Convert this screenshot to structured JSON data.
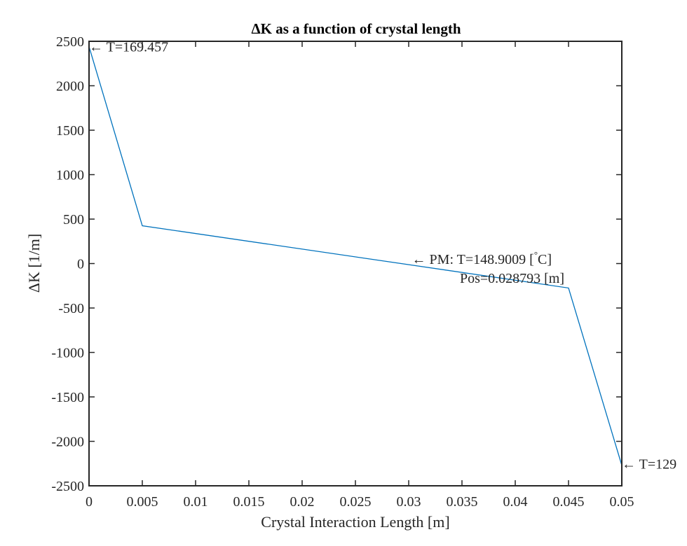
{
  "chart_data": {
    "type": "line",
    "title": "ΔK as a function of crystal length",
    "xlabel": "Crystal Interaction Length [m]",
    "ylabel": "ΔK [1/m]",
    "xlim": [
      0,
      0.05
    ],
    "ylim": [
      -2500,
      2500
    ],
    "xticks": [
      0,
      0.005,
      0.01,
      0.015,
      0.02,
      0.025,
      0.03,
      0.035,
      0.04,
      0.045,
      0.05
    ],
    "xtick_labels": [
      "0",
      "0.005",
      "0.01",
      "0.015",
      "0.02",
      "0.025",
      "0.03",
      "0.035",
      "0.04",
      "0.045",
      "0.05"
    ],
    "yticks": [
      2500,
      2000,
      1500,
      1000,
      500,
      0,
      -500,
      -1000,
      -1500,
      -2000,
      -2500
    ],
    "ytick_labels": [
      "2500",
      "2000",
      "1500",
      "1000",
      "500",
      "0",
      "-500",
      "-1000",
      "-1500",
      "-2000",
      "-2500"
    ],
    "grid": false,
    "color": "#0072bd",
    "series": [
      {
        "x": [
          0,
          0.005,
          0.045,
          0.05
        ],
        "y": [
          2440,
          425,
          -275,
          -2270
        ]
      }
    ],
    "annotations": [
      {
        "text": "← T=169.457",
        "x": 0,
        "y": 2440
      },
      {
        "text": "← PM: T=148.9009 [",
        "degree": "°",
        "unit": "C]",
        "x": 0.0303,
        "y": 50
      },
      {
        "text": "Pos=0.028793 [m]",
        "x": 0.0348,
        "y": -160
      },
      {
        "text": "← T=129",
        "x": 0.05,
        "y": -2250
      }
    ]
  }
}
